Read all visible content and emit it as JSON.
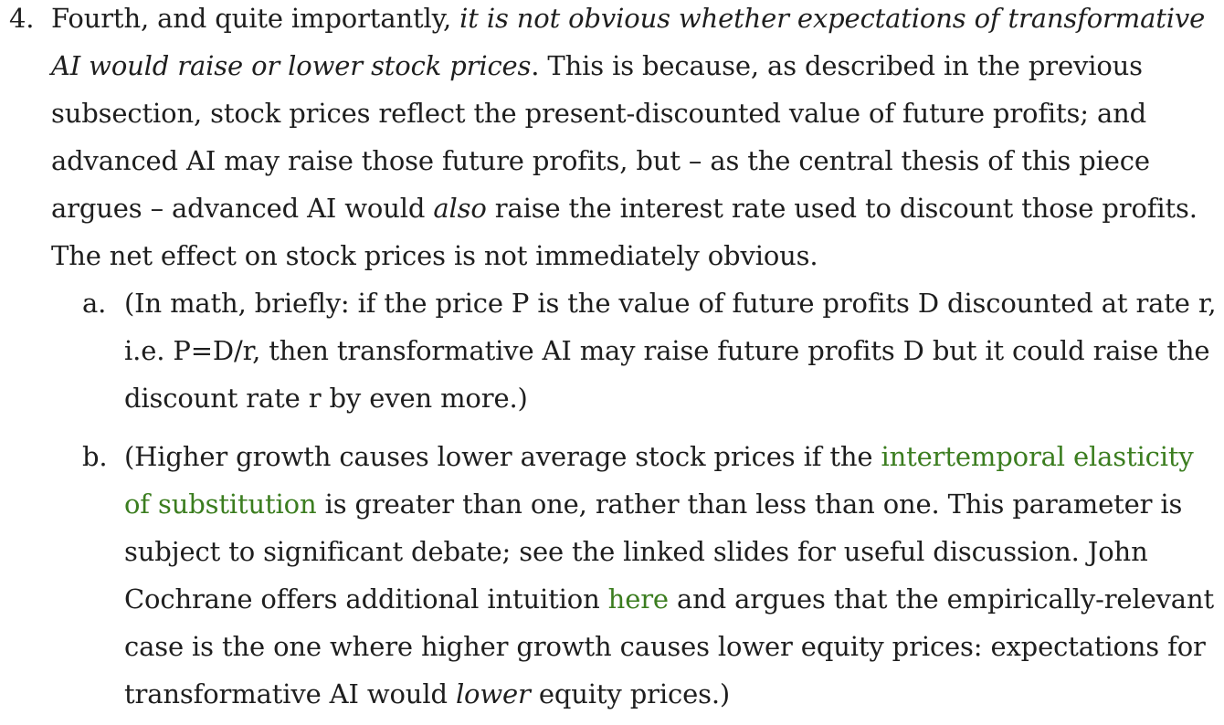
{
  "item4": {
    "marker": "4.",
    "lead": "Fourth, and quite importantly, ",
    "italic_claim": "it is not obvious whether expectations of transformative AI would raise or lower stock prices",
    "after_claim": ". This is because, as described in the previous subsection, stock prices reflect the present-discounted value of future profits; and advanced AI may raise those future profits, but – as the central thesis of this piece argues – advanced AI would ",
    "italic_also": "also",
    "tail": " raise the interest rate used to discount those profits. The net effect on stock prices is not immediately obvious."
  },
  "sub_a": {
    "marker": "a.",
    "text": "(In math, briefly: if the price P is the value of future profits D discounted at rate r, i.e. P=D/r, then transformative AI may raise future profits D but it could raise the discount rate r by even more.)"
  },
  "sub_b": {
    "marker": "b.",
    "before_link1": "(Higher growth causes lower average stock prices if the ",
    "link1": "intertemporal elasticity of substitution",
    "after_link1": " is greater than one, rather than less than one. This parameter is subject to significant debate; see the linked slides for useful discussion. John Cochrane offers additional intuition ",
    "link2": "here",
    "after_link2": " and argues that the empirically-relevant case is the one where higher growth causes lower equity prices: expectations for transformative AI would ",
    "italic_lower": "lower",
    "tail": " equity prices.)"
  },
  "colors": {
    "text": "#1e1e1e",
    "link": "#3b7d1f"
  }
}
